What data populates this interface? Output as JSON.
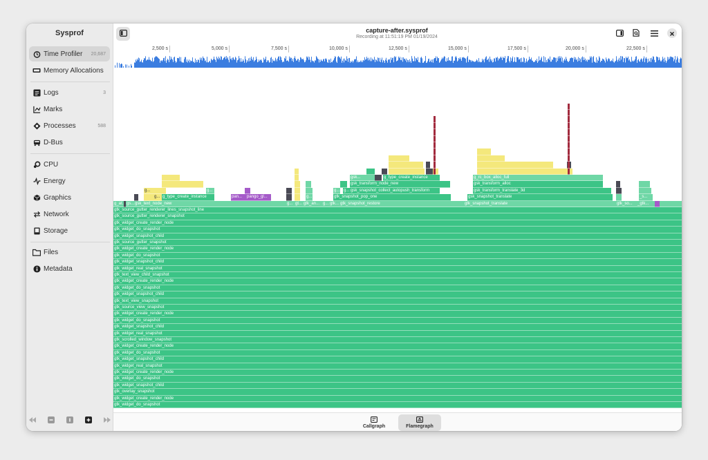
{
  "sidebar": {
    "title": "Sysprof",
    "items": [
      {
        "label": "Time Profiler",
        "count": "20,687",
        "icon": "stopwatch-icon",
        "active": true
      },
      {
        "label": "Memory Allocations",
        "count": "",
        "icon": "memory-icon"
      },
      {
        "label": "Logs",
        "count": "3",
        "icon": "logs-icon"
      },
      {
        "label": "Marks",
        "count": "",
        "icon": "marks-icon"
      },
      {
        "label": "Processes",
        "count": "588",
        "icon": "processes-icon"
      },
      {
        "label": "D-Bus",
        "count": "",
        "icon": "dbus-icon"
      },
      {
        "label": "CPU",
        "count": "",
        "icon": "cpu-icon"
      },
      {
        "label": "Energy",
        "count": "",
        "icon": "energy-icon"
      },
      {
        "label": "Graphics",
        "count": "",
        "icon": "graphics-icon"
      },
      {
        "label": "Network",
        "count": "",
        "icon": "network-icon"
      },
      {
        "label": "Storage",
        "count": "",
        "icon": "storage-icon"
      },
      {
        "label": "Files",
        "count": "",
        "icon": "files-icon"
      },
      {
        "label": "Metadata",
        "count": "",
        "icon": "metadata-icon"
      }
    ]
  },
  "header": {
    "title": "capture-after.sysprof",
    "subtitle": "Recording at 11:51:19 PM 01/19/2024"
  },
  "ruler": {
    "ticks": [
      "2,500 s",
      "5,000 s",
      "7,500 s",
      "10,000 s",
      "12,500 s",
      "15,000 s",
      "17,500 s",
      "20,000 s",
      "22,500 s"
    ]
  },
  "flamegraph": {
    "stack": [
      "gtk_source_gutter_renderer_lines_snapshot_line",
      "gtk_source_gutter_renderer_snapshot",
      "gtk_widget_create_render_node",
      "gtk_widget_do_snapshot",
      "gtk_widget_snapshot_child",
      "gtk_source_gutter_snapshot",
      "gtk_widget_create_render_node",
      "gtk_widget_do_snapshot",
      "gtk_widget_snapshot_child",
      "gtk_widget_real_snapshot",
      "gtk_text_view_child_snapshot",
      "gtk_widget_create_render_node",
      "gtk_widget_do_snapshot",
      "gtk_widget_snapshot_child",
      "gtk_text_view_snapshot",
      "gtk_source_view_snapshot",
      "gtk_widget_create_render_node",
      "gtk_widget_do_snapshot",
      "gtk_widget_snapshot_child",
      "gtk_widget_real_snapshot",
      "gtk_scrolled_window_snapshot",
      "gtk_widget_create_render_node",
      "gtk_widget_do_snapshot",
      "gtk_widget_snapshot_child",
      "gtk_widget_real_snapshot",
      "gtk_widget_create_render_node",
      "gtk_widget_do_snapshot",
      "gtk_widget_snapshot_child",
      "gtk_overlay_snapshot",
      "gtk_widget_create_render_node",
      "gtk_widget_do_snapshot"
    ],
    "labels": {
      "g_at": "g_at...",
      "gs": "gs...",
      "text_node_new": "gsk_text_node_new",
      "type_create": "g_type_create_instance",
      "pan": "pan...",
      "pango_gl": "pango_gl...",
      "g1": "g...",
      "gt": "gt...",
      "gtk_an": "gtk_an...",
      "g2": "g...",
      "gtk_dot": "gtk...",
      "snap_restore": "gtk_snapshot_restore",
      "snap_pop": "gtk_snapshot_pop_one",
      "collect_autopush": "gsk_snapshot_collect_autopush_transform",
      "transform_node_new": "gsk_transform_node_new",
      "gsk_short": "gsk...",
      "type_create2": "g_type_create_instance",
      "snap_translate": "gtk_snapshot_translate",
      "gsk_translate": "gsk_snapshot_translate",
      "translate_3d": "gsk_transform_translate_3d",
      "transform_alloc": "gsk_transform_alloc",
      "rc_box": "g_rc_box_alloc_full",
      "gtk_so": "gtk_so...",
      "gtk_ell": "_gtk...",
      "s_dot": "_s..."
    },
    "colors": {
      "green": "#3cc486",
      "green_light": "#6fd7a6",
      "yellow": "#f4e87c",
      "purple": "#a55bc9",
      "red": "#a22b3e",
      "gray": "#4a4a55"
    }
  },
  "footer": {
    "tabs": [
      {
        "label": "Callgraph",
        "icon": "callgraph-icon"
      },
      {
        "label": "Flamegraph",
        "icon": "flamegraph-icon",
        "active": true
      }
    ]
  }
}
